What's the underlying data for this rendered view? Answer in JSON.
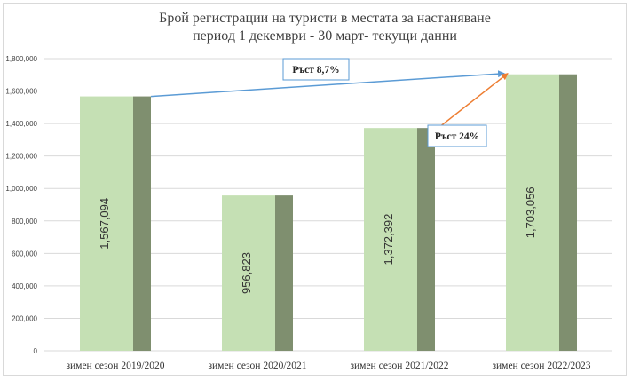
{
  "chart_data": {
    "type": "bar",
    "title": "Брой регистрации на туристи  в местата за настаняване",
    "subtitle": "период 1 декември - 30 март- текущи данни",
    "categories": [
      "зимен сезон 2019/2020",
      "зимен сезон 2020/2021",
      "зимен сезон 2021/2022",
      "зимен сезон 2022/2023"
    ],
    "values": [
      1567094,
      956823,
      1372392,
      1703056
    ],
    "value_labels": [
      "1,567,094",
      "956,823",
      "1,372,392",
      "1,703,056"
    ],
    "ylim": [
      0,
      1800000
    ],
    "yticks": [
      0,
      200000,
      400000,
      600000,
      800000,
      1000000,
      1200000,
      1400000,
      1600000,
      1800000
    ],
    "ytick_labels": [
      "0",
      "200,000",
      "400,000",
      "600,000",
      "800,000",
      "1,000,000",
      "1,200,000",
      "1,400,000",
      "1,600,000",
      "1,800,000"
    ],
    "grid": true,
    "annotations": [
      {
        "text": "Ръст 8,7%",
        "from_category": 0,
        "to_category": 3,
        "color": "#5b9bd5"
      },
      {
        "text": "Ръст 24%",
        "from_category": 2,
        "to_category": 3,
        "color": "#ed7d31"
      }
    ],
    "colors": {
      "bar_light": "#c5e0b4",
      "bar_dark": "#7f8f6f",
      "grid": "#d9d9d9"
    }
  }
}
